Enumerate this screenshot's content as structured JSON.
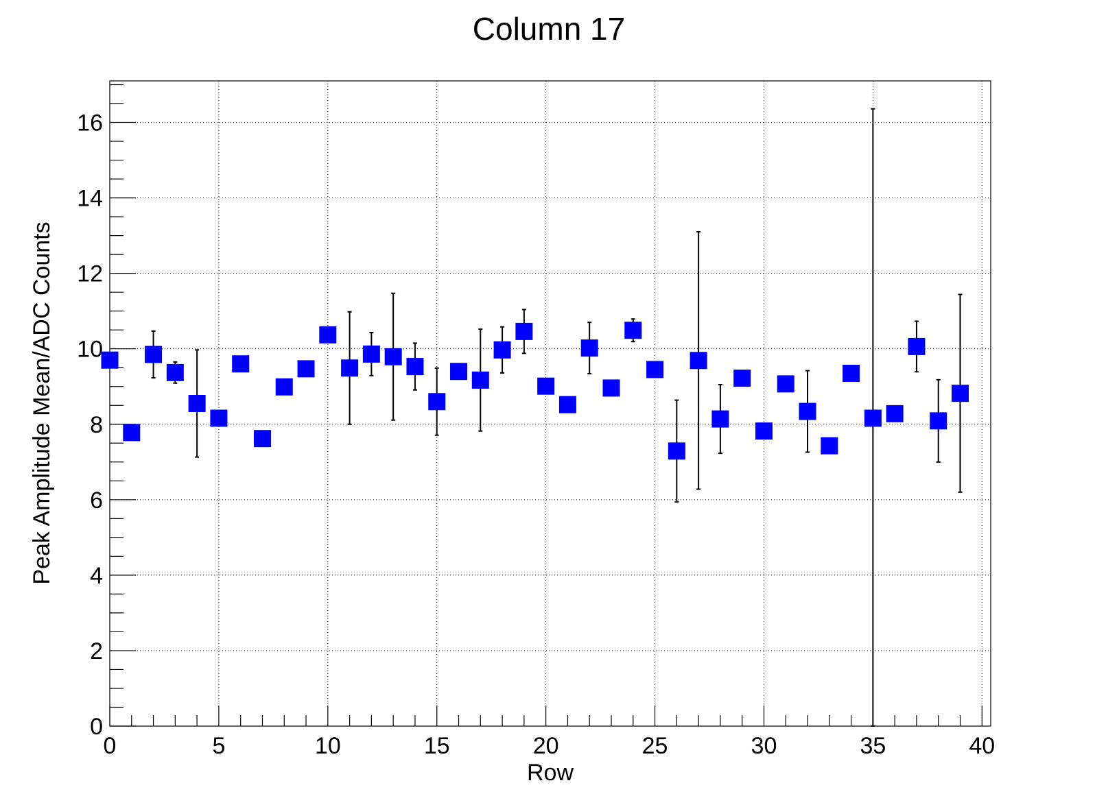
{
  "chart_data": {
    "type": "scatter",
    "title": "Column 17",
    "xlabel": "Row",
    "ylabel": "Peak Amplitude Mean/ADC Counts",
    "xlim": [
      0,
      40.4
    ],
    "ylim": [
      0,
      17.1
    ],
    "x_ticks": [
      0,
      5,
      10,
      15,
      20,
      25,
      30,
      35,
      40
    ],
    "y_ticks": [
      0,
      2,
      4,
      6,
      8,
      10,
      12,
      14,
      16
    ],
    "grid": true,
    "marker": "square",
    "marker_color": "#0000ff",
    "error_bar_color": "#000000",
    "series": [
      {
        "x": [
          0,
          1,
          2,
          3,
          4,
          5,
          6,
          7,
          8,
          9,
          10,
          11,
          12,
          13,
          14,
          15,
          16,
          17,
          18,
          19,
          20,
          21,
          22,
          23,
          24,
          25,
          26,
          27,
          28,
          29,
          30,
          31,
          32,
          33,
          34,
          35,
          36,
          37,
          38,
          39
        ],
        "y": [
          9.7,
          7.78,
          9.85,
          9.37,
          8.55,
          8.16,
          9.6,
          7.62,
          8.99,
          9.47,
          10.37,
          9.49,
          9.86,
          9.79,
          9.53,
          8.6,
          9.4,
          9.17,
          9.97,
          10.46,
          9.01,
          8.52,
          10.02,
          8.96,
          10.49,
          9.45,
          7.29,
          9.69,
          8.14,
          9.22,
          7.82,
          9.07,
          8.34,
          7.43,
          9.35,
          8.16,
          8.28,
          10.06,
          8.09,
          8.82
        ],
        "err": [
          0,
          0,
          0.62,
          0.28,
          1.42,
          0,
          0,
          0,
          0,
          0,
          0,
          1.49,
          0.57,
          1.68,
          0.62,
          0.89,
          0,
          1.35,
          0.61,
          0.58,
          0,
          0,
          0.68,
          0,
          0.3,
          0,
          1.35,
          3.41,
          0.91,
          0,
          0,
          0,
          1.08,
          0,
          0,
          8.2,
          0,
          0.67,
          1.09,
          2.62
        ]
      }
    ]
  }
}
